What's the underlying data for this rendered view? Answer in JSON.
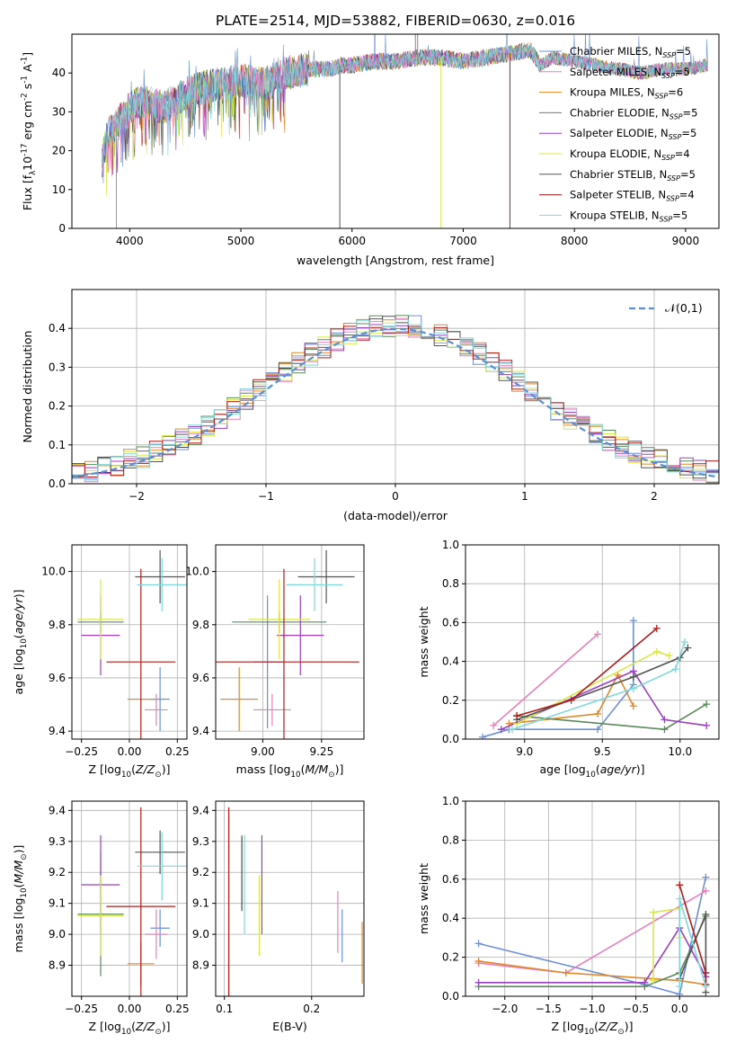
{
  "title": "PLATE=2514, MJD=53882, FIBERID=0630, z=0.016",
  "colors": {
    "Chabrier MILES": "#6c8fd6",
    "Salpeter MILES": "#e87fbd",
    "Kroupa MILES": "#e0882c",
    "Chabrier ELODIE": "#5a8a5a",
    "Salpeter ELODIE": "#9b3fbf",
    "Kroupa ELODIE": "#d8e848",
    "Chabrier STELIB": "#555555",
    "Salpeter STELIB": "#b01c1c",
    "Kroupa STELIB": "#7fd8dc",
    "gaussian": "#5b8ed6"
  },
  "chart_data": [
    {
      "type": "line",
      "id": "spectrum",
      "xlabel": "wavelength [Angstrom, rest frame]",
      "ylabel": "Flux [f$_\\lambda$10$^{-17}$ erg cm$^{-2}$ s$^{-1}$ A$^{-1}$]",
      "xlim": [
        3480,
        9300
      ],
      "ylim": [
        0,
        50
      ],
      "xticks": [
        4000,
        5000,
        6000,
        7000,
        8000,
        9000
      ],
      "yticks": [
        0,
        10,
        20,
        30,
        40
      ],
      "grid": false,
      "legend_position": "top-right",
      "legend": [
        {
          "name": "Chabrier MILES",
          "nssp": "5"
        },
        {
          "name": "Salpeter MILES",
          "nssp": "5"
        },
        {
          "name": "Kroupa MILES",
          "nssp": "6"
        },
        {
          "name": "Chabrier ELODIE",
          "nssp": "5"
        },
        {
          "name": "Salpeter ELODIE",
          "nssp": "5"
        },
        {
          "name": "Kroupa ELODIE",
          "nssp": "4"
        },
        {
          "name": "Chabrier STELIB",
          "nssp": "5"
        },
        {
          "name": "Salpeter STELIB",
          "nssp": "4"
        },
        {
          "name": "Kroupa STELIB",
          "nssp": "5"
        }
      ],
      "continuum": [
        [
          3750,
          17
        ],
        [
          3800,
          24
        ],
        [
          3880,
          27
        ],
        [
          3950,
          29
        ],
        [
          4000,
          31
        ],
        [
          4100,
          33
        ],
        [
          4300,
          31
        ],
        [
          4400,
          33
        ],
        [
          4600,
          36
        ],
        [
          4800,
          37
        ],
        [
          5000,
          38
        ],
        [
          5200,
          37
        ],
        [
          5400,
          40
        ],
        [
          5600,
          41
        ],
        [
          5800,
          41
        ],
        [
          5900,
          42
        ],
        [
          6000,
          42
        ],
        [
          6200,
          43
        ],
        [
          6400,
          43
        ],
        [
          6600,
          44
        ],
        [
          6800,
          44
        ],
        [
          7000,
          43
        ],
        [
          7200,
          44
        ],
        [
          7400,
          45
        ],
        [
          7600,
          46
        ],
        [
          7700,
          42
        ],
        [
          7800,
          44
        ],
        [
          8000,
          43
        ],
        [
          8200,
          42
        ],
        [
          8400,
          41
        ],
        [
          8600,
          40
        ],
        [
          8800,
          41
        ],
        [
          9000,
          41
        ],
        [
          9200,
          42
        ]
      ],
      "drops": [
        [
          3880,
          0
        ],
        [
          5890,
          0
        ],
        [
          6800,
          0
        ],
        [
          7420,
          0
        ]
      ]
    },
    {
      "type": "bar",
      "id": "residuals",
      "xlabel": "(data-model)/error",
      "ylabel": "Normed distribution",
      "xlim": [
        -2.5,
        2.5
      ],
      "ylim": [
        0,
        0.5
      ],
      "xticks": [
        -2,
        -1,
        0,
        1,
        2
      ],
      "xticklabels": [
        "−2",
        "−1",
        "0",
        "1",
        "2"
      ],
      "yticks": [
        0.0,
        0.1,
        0.2,
        0.3,
        0.4
      ],
      "grid": true,
      "bin_width": 0.1,
      "legend": [
        "$\\mathcal{N}(0,1)$"
      ]
    },
    {
      "type": "scatter",
      "id": "age-vs-Z",
      "xlabel": "Z [log$_{10}$($Z/Z_\\odot$)]",
      "ylabel": "age  [log$_{10}$($age/yr$)]",
      "xlim": [
        -0.3,
        0.3
      ],
      "ylim": [
        9.37,
        10.1
      ],
      "xticks": [
        -0.25,
        0.0,
        0.25
      ],
      "xticklabels": [
        "−0.25",
        "0.00",
        "0.25"
      ],
      "yticks": [
        9.4,
        9.6,
        9.8,
        10.0
      ],
      "grid": true,
      "points": [
        {
          "model": "Chabrier MILES",
          "x": 0.16,
          "y": 9.52,
          "xerr": 0.05,
          "yerr": 0.12
        },
        {
          "model": "Salpeter MILES",
          "x": 0.14,
          "y": 9.48,
          "xerr": 0.06,
          "yerr": 0.06
        },
        {
          "model": "Kroupa MILES",
          "x": 0.06,
          "y": 9.52,
          "xerr": 0.07,
          "yerr": 0.0
        },
        {
          "model": "Chabrier ELODIE",
          "x": -0.15,
          "y": 9.81,
          "xerr": 0.12,
          "yerr": 0.04
        },
        {
          "model": "Salpeter ELODIE",
          "x": -0.15,
          "y": 9.76,
          "xerr": 0.1,
          "yerr": 0.15
        },
        {
          "model": "Kroupa ELODIE",
          "x": -0.15,
          "y": 9.82,
          "xerr": 0.12,
          "yerr": 0.15
        },
        {
          "model": "Chabrier STELIB",
          "x": 0.16,
          "y": 9.98,
          "xerr": 0.13,
          "yerr": 0.1
        },
        {
          "model": "Salpeter STELIB",
          "x": 0.06,
          "y": 9.66,
          "xerr": 0.18,
          "yerr": 0.35
        },
        {
          "model": "Kroupa STELIB",
          "x": 0.17,
          "y": 9.95,
          "xerr": 0.13,
          "yerr": 0.1
        }
      ]
    },
    {
      "type": "scatter",
      "id": "age-vs-mass",
      "xlabel": "mass [log$_{10}$($M/M_\\odot$)]",
      "ylabel": "",
      "xlim": [
        8.8,
        9.43
      ],
      "ylim": [
        9.37,
        10.1
      ],
      "xticks": [
        9.0,
        9.25
      ],
      "xticklabels": [
        "9.00",
        "9.25"
      ],
      "yticks": [
        9.4,
        9.6,
        9.8,
        10.0
      ],
      "grid": true,
      "points": [
        {
          "model": "Chabrier MILES",
          "x": 9.02,
          "y": 9.66,
          "xerr": 0.06,
          "yerr": 0.25
        },
        {
          "model": "Salpeter MILES",
          "x": 9.04,
          "y": 9.48,
          "xerr": 0.08,
          "yerr": 0.06
        },
        {
          "model": "Kroupa MILES",
          "x": 8.9,
          "y": 9.52,
          "xerr": 0.08,
          "yerr": 0.12
        },
        {
          "model": "Chabrier ELODIE",
          "x": 9.07,
          "y": 9.81,
          "xerr": 0.2,
          "yerr": 0.04
        },
        {
          "model": "Salpeter ELODIE",
          "x": 9.16,
          "y": 9.76,
          "xerr": 0.1,
          "yerr": 0.15
        },
        {
          "model": "Kroupa ELODIE",
          "x": 9.07,
          "y": 9.82,
          "xerr": 0.13,
          "yerr": 0.15
        },
        {
          "model": "Chabrier STELIB",
          "x": 9.27,
          "y": 9.98,
          "xerr": 0.12,
          "yerr": 0.1
        },
        {
          "model": "Salpeter STELIB",
          "x": 9.09,
          "y": 9.66,
          "xerr": 0.32,
          "yerr": 0.35
        },
        {
          "model": "Kroupa STELIB",
          "x": 9.22,
          "y": 9.95,
          "xerr": 0.12,
          "yerr": 0.1
        }
      ]
    },
    {
      "type": "line",
      "id": "weight-vs-age",
      "xlabel": "age  [log$_{10}$($age/yr$)]",
      "ylabel": "mass weight",
      "xlim": [
        8.62,
        10.25
      ],
      "ylim": [
        0,
        1
      ],
      "xticks": [
        9.0,
        9.5,
        10.0
      ],
      "xticklabels": [
        "9.0",
        "9.5",
        "10.0"
      ],
      "yticks": [
        0.0,
        0.2,
        0.4,
        0.6,
        0.8,
        1.0
      ],
      "grid": true,
      "series": [
        {
          "model": "Chabrier MILES",
          "x": [
            8.73,
            8.9,
            9.47,
            9.7,
            9.7
          ],
          "y": [
            0.01,
            0.05,
            0.05,
            0.28,
            0.61
          ]
        },
        {
          "model": "Salpeter MILES",
          "x": [
            8.8,
            9.47
          ],
          "y": [
            0.07,
            0.54
          ]
        },
        {
          "model": "Kroupa MILES",
          "x": [
            8.9,
            9.47,
            9.6,
            9.7
          ],
          "y": [
            0.08,
            0.13,
            0.33,
            0.17
          ]
        },
        {
          "model": "Chabrier ELODIE",
          "x": [
            8.95,
            9.9,
            10.17
          ],
          "y": [
            0.12,
            0.05,
            0.18
          ]
        },
        {
          "model": "Salpeter ELODIE",
          "x": [
            8.85,
            9.7,
            9.9,
            10.17
          ],
          "y": [
            0.05,
            0.35,
            0.1,
            0.07
          ]
        },
        {
          "model": "Kroupa ELODIE",
          "x": [
            8.95,
            9.85,
            9.93
          ],
          "y": [
            0.08,
            0.45,
            0.43
          ]
        },
        {
          "model": "Chabrier STELIB",
          "x": [
            8.95,
            9.7,
            10.0,
            10.05
          ],
          "y": [
            0.1,
            0.32,
            0.42,
            0.47
          ]
        },
        {
          "model": "Salpeter STELIB",
          "x": [
            8.95,
            9.3,
            9.85
          ],
          "y": [
            0.12,
            0.2,
            0.57
          ]
        },
        {
          "model": "Kroupa STELIB",
          "x": [
            8.92,
            9.7,
            9.97,
            10.03
          ],
          "y": [
            0.05,
            0.26,
            0.36,
            0.5
          ]
        }
      ]
    },
    {
      "type": "scatter",
      "id": "mass-vs-Z",
      "xlabel": "Z [log$_{10}$($Z/Z_\\odot$)]",
      "ylabel": "mass [log$_{10}$($M/M_\\odot$)]",
      "xlim": [
        -0.3,
        0.3
      ],
      "ylim": [
        8.8,
        9.43
      ],
      "xticks": [
        -0.25,
        0.0,
        0.25
      ],
      "xticklabels": [
        "−0.25",
        "0.00",
        "0.25"
      ],
      "yticks": [
        8.9,
        9.0,
        9.1,
        9.2,
        9.3,
        9.4
      ],
      "grid": true,
      "points": [
        {
          "model": "Chabrier MILES",
          "x": 0.16,
          "y": 9.02,
          "xerr": 0.05,
          "yerr": 0.06
        },
        {
          "model": "Salpeter MILES",
          "x": 0.14,
          "y": 9.0,
          "xerr": 0.06,
          "yerr": 0.08
        },
        {
          "model": "Kroupa MILES",
          "x": 0.06,
          "y": 8.905,
          "xerr": 0.07,
          "yerr": 0.07
        },
        {
          "model": "Chabrier ELODIE",
          "x": -0.15,
          "y": 9.065,
          "xerr": 0.12,
          "yerr": 0.2
        },
        {
          "model": "Salpeter ELODIE",
          "x": -0.15,
          "y": 9.16,
          "xerr": 0.1,
          "yerr": 0.16
        },
        {
          "model": "Kroupa ELODIE",
          "x": -0.15,
          "y": 9.06,
          "xerr": 0.12,
          "yerr": 0.13
        },
        {
          "model": "Chabrier STELIB",
          "x": 0.16,
          "y": 9.265,
          "xerr": 0.13,
          "yerr": 0.07
        },
        {
          "model": "Salpeter STELIB",
          "x": 0.06,
          "y": 9.09,
          "xerr": 0.18,
          "yerr": 0.32
        },
        {
          "model": "Kroupa STELIB",
          "x": 0.17,
          "y": 9.22,
          "xerr": 0.13,
          "yerr": 0.11
        }
      ]
    },
    {
      "type": "scatter",
      "id": "mass-vs-EBV",
      "xlabel": "E(B-V)",
      "ylabel": "",
      "xlim": [
        0.09,
        0.26
      ],
      "ylim": [
        8.8,
        9.43
      ],
      "xticks": [
        0.1,
        0.2
      ],
      "xticklabels": [
        "0.1",
        "0.2"
      ],
      "yticks": [
        8.9,
        9.0,
        9.1,
        9.2,
        9.3,
        9.4
      ],
      "grid": true,
      "points": [
        {
          "model": "Chabrier MILES",
          "x": 0.235,
          "y": 8.995,
          "xerr": 0.0,
          "yerr": 0.085
        },
        {
          "model": "Salpeter MILES",
          "x": 0.23,
          "y": 9.04,
          "xerr": 0.0,
          "yerr": 0.1
        },
        {
          "model": "Kroupa MILES",
          "x": 0.258,
          "y": 8.94,
          "xerr": 0.0,
          "yerr": 0.1
        },
        {
          "model": "Chabrier ELODIE",
          "x": 0.12,
          "y": 9.2,
          "xerr": 0.0,
          "yerr": 0.12
        },
        {
          "model": "Salpeter ELODIE",
          "x": 0.143,
          "y": 9.16,
          "xerr": 0.0,
          "yerr": 0.16
        },
        {
          "model": "Kroupa ELODIE",
          "x": 0.14,
          "y": 9.06,
          "xerr": 0.0,
          "yerr": 0.13
        },
        {
          "model": "Chabrier STELIB",
          "x": 0.12,
          "y": 9.195,
          "xerr": 0.0,
          "yerr": 0.12
        },
        {
          "model": "Salpeter STELIB",
          "x": 0.105,
          "y": 9.09,
          "xerr": 0.0,
          "yerr": 0.32
        },
        {
          "model": "Kroupa STELIB",
          "x": 0.123,
          "y": 9.16,
          "xerr": 0.0,
          "yerr": 0.16
        }
      ]
    },
    {
      "type": "line",
      "id": "weight-vs-Z",
      "xlabel": "Z [log$_{10}$($Z/Z_\\odot$)]",
      "ylabel": "mass weight",
      "xlim": [
        -2.45,
        0.45
      ],
      "ylim": [
        0,
        1
      ],
      "xticks": [
        -2.0,
        -1.5,
        -1.0,
        -0.5,
        0.0
      ],
      "xticklabels": [
        "−2.0",
        "−1.5",
        "−1.0",
        "−0.5",
        "0.0"
      ],
      "yticks": [
        0.0,
        0.2,
        0.4,
        0.6,
        0.8,
        1.0
      ],
      "grid": true,
      "series": [
        {
          "model": "Chabrier MILES",
          "x": [
            -2.3,
            -0.4,
            0.0,
            0.3
          ],
          "y": [
            0.27,
            0.06,
            0.01,
            0.61
          ]
        },
        {
          "model": "Salpeter MILES",
          "x": [
            -2.3,
            -1.3,
            0.3
          ],
          "y": [
            0.17,
            0.12,
            0.54
          ]
        },
        {
          "model": "Kroupa MILES",
          "x": [
            -2.3,
            -1.3,
            0.0,
            0.3
          ],
          "y": [
            0.18,
            0.12,
            0.08,
            0.06
          ]
        },
        {
          "model": "Chabrier ELODIE",
          "x": [
            -2.3,
            -0.4,
            0.0,
            0.3
          ],
          "y": [
            0.05,
            0.05,
            0.12,
            0.41
          ]
        },
        {
          "model": "Salpeter ELODIE",
          "x": [
            -2.3,
            -0.4,
            0.0,
            0.3
          ],
          "y": [
            0.07,
            0.07,
            0.35,
            0.1
          ]
        },
        {
          "model": "Kroupa ELODIE",
          "x": [
            -0.3,
            -0.3,
            0.0,
            0.0
          ],
          "y": [
            0.08,
            0.43,
            0.45,
            0.3
          ]
        },
        {
          "model": "Chabrier STELIB",
          "x": [
            0.0,
            0.3,
            0.3
          ],
          "y": [
            0.09,
            0.42,
            0.02
          ]
        },
        {
          "model": "Salpeter STELIB",
          "x": [
            0.0,
            0.3,
            0.3
          ],
          "y": [
            0.57,
            0.12,
            0.06
          ]
        },
        {
          "model": "Kroupa STELIB",
          "x": [
            0.0,
            0.0,
            0.3
          ],
          "y": [
            0.05,
            0.5,
            0.05
          ]
        }
      ]
    }
  ]
}
